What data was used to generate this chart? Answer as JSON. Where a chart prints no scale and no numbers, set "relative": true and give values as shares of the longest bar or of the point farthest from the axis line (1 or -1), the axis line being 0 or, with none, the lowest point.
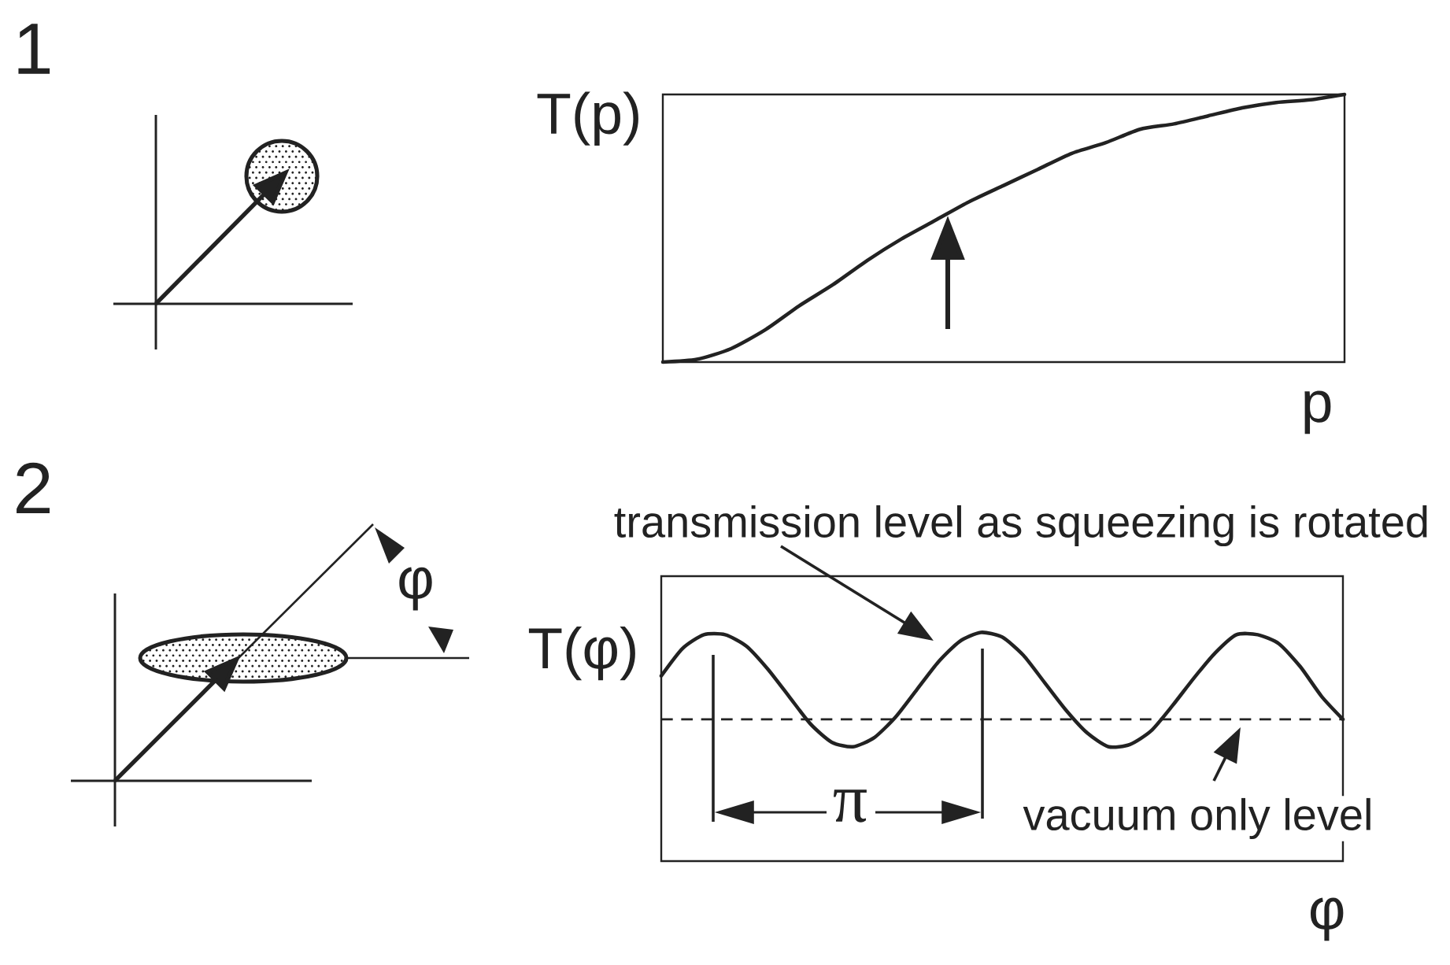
{
  "chart_data": [
    {
      "type": "line",
      "xlabel": "p",
      "ylabel": "T(p)",
      "relative": true,
      "categories": [
        null,
        null,
        null,
        null,
        null,
        null,
        null,
        null,
        null,
        null,
        null,
        null,
        null,
        null,
        null,
        null,
        null,
        null,
        null,
        null,
        null
      ],
      "values": [
        0,
        0.01,
        0.05,
        0.12,
        0.21,
        0.29,
        0.38,
        0.46,
        0.53,
        0.6,
        0.66,
        0.72,
        0.78,
        0.82,
        0.87,
        0.89,
        0.92,
        0.95,
        0.97,
        0.98,
        1
      ],
      "color": "#222222",
      "annotations": [
        "1"
      ]
    },
    {
      "type": "line",
      "xlabel": "φ",
      "ylabel": "T(φ)",
      "relative": true,
      "categories": [
        null,
        null,
        null,
        null,
        null,
        null,
        null,
        null,
        null,
        null,
        null,
        null,
        null,
        null,
        null,
        null,
        null,
        null,
        null,
        null,
        null,
        null,
        null,
        null,
        null,
        null,
        null,
        null,
        null,
        null,
        null,
        null,
        null
      ],
      "values": [
        0.81,
        0.93,
        0.99,
        0.99,
        0.94,
        0.84,
        0.72,
        0.6,
        0.52,
        0.5,
        0.54,
        0.63,
        0.75,
        0.87,
        0.96,
        1,
        0.98,
        0.9,
        0.78,
        0.66,
        0.56,
        0.5,
        0.51,
        0.57,
        0.68,
        0.8,
        0.91,
        0.99,
        0.99,
        0.95,
        0.85,
        0.72,
        0.62
      ],
      "color": "#222222",
      "ref_lines": [
        {
          "axis": "y",
          "value": 0.62,
          "line_style": "dashed",
          "color": "#222222"
        }
      ],
      "annotations": [
        "2",
        "transmission level as squeezing is rotated",
        "π",
        "φ",
        {
          "text": "vacuum only level",
          "y": 0.62
        }
      ]
    }
  ]
}
